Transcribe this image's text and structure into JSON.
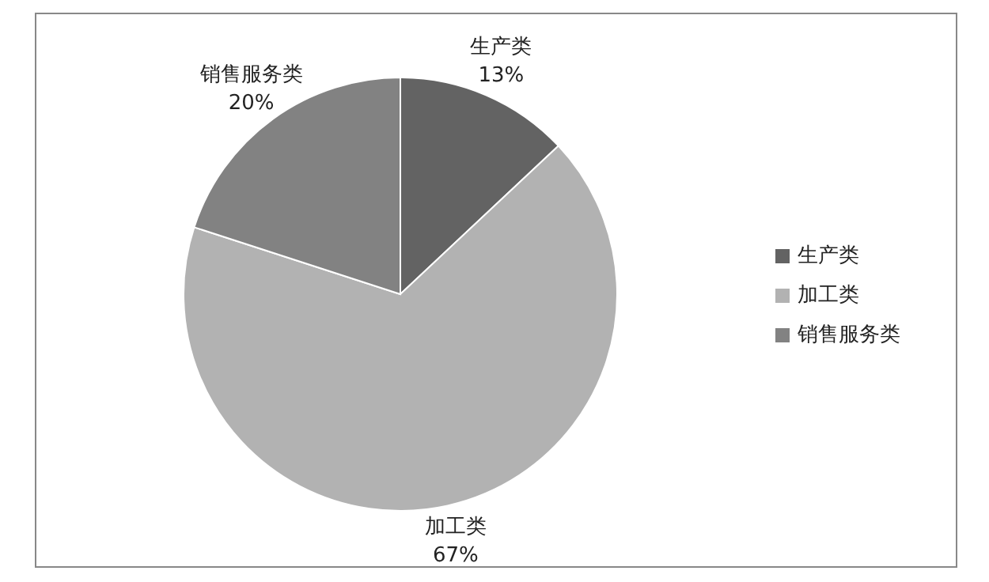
{
  "chart_data": {
    "type": "pie",
    "categories": [
      "生产类",
      "加工类",
      "销售服务类"
    ],
    "values": [
      13,
      67,
      20
    ],
    "colors": [
      "#636363",
      "#b2b2b2",
      "#828282"
    ],
    "value_labels": [
      "13%",
      "67%",
      "20%"
    ],
    "legend": "right"
  }
}
